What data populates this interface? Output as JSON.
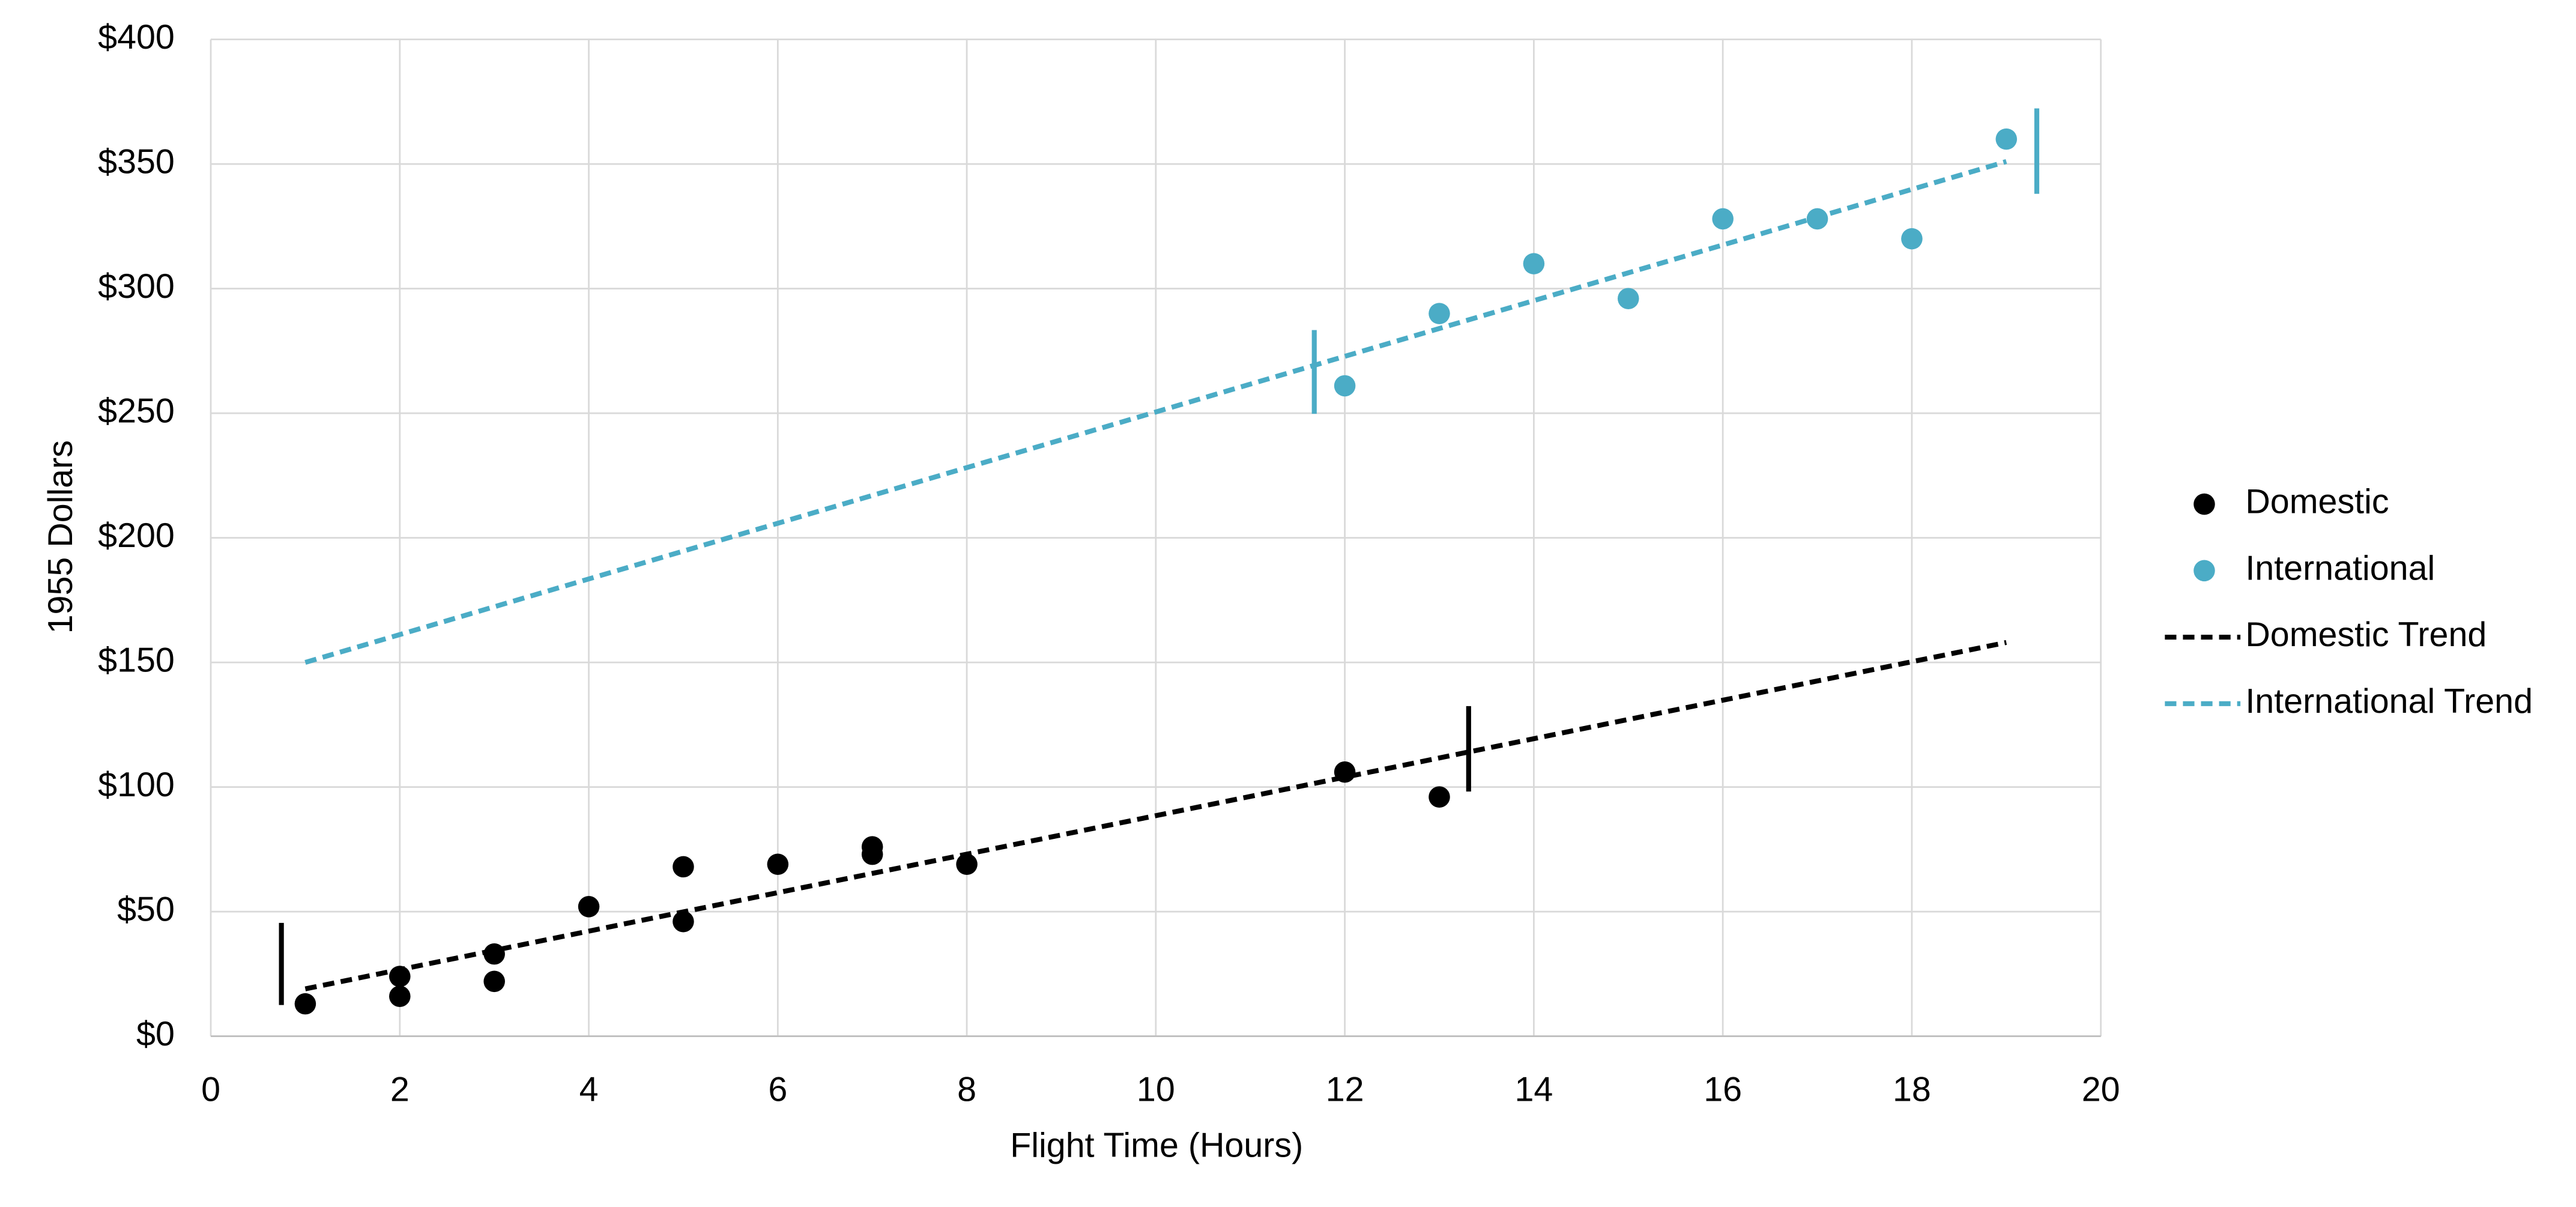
{
  "chart_data": {
    "type": "scatter",
    "xlabel": "Flight Time (Hours)",
    "ylabel": "1955 Dollars",
    "xlim": [
      0,
      20
    ],
    "xticks": [
      0,
      2,
      4,
      6,
      8,
      10,
      12,
      14,
      16,
      18,
      20
    ],
    "ylim": [
      0,
      400
    ],
    "yticks": [
      {
        "value": 0,
        "label": "$0"
      },
      {
        "value": 50,
        "label": "$50"
      },
      {
        "value": 100,
        "label": "$100"
      },
      {
        "value": 150,
        "label": "$150"
      },
      {
        "value": 200,
        "label": "$200"
      },
      {
        "value": 250,
        "label": "$250"
      },
      {
        "value": 300,
        "label": "$300"
      },
      {
        "value": 350,
        "label": "$350"
      },
      {
        "value": 400,
        "label": "$400"
      }
    ],
    "grid": true,
    "legend": "right",
    "series": [
      {
        "name": "Domestic",
        "color": "#000000",
        "mode": "markers",
        "x": [
          1,
          2,
          2,
          3,
          3,
          4,
          5,
          5,
          6,
          7,
          7,
          8,
          12,
          13
        ],
        "values": [
          13,
          24,
          16,
          33,
          22,
          52,
          68,
          46,
          69,
          76,
          73,
          69,
          106,
          96
        ]
      },
      {
        "name": "International",
        "color": "#4bacc6",
        "mode": "markers",
        "x": [
          12,
          13,
          14,
          15,
          16,
          17,
          18,
          19
        ],
        "values": [
          261,
          290,
          310,
          296,
          328,
          328,
          320,
          360
        ]
      },
      {
        "name": "Domestic Trend",
        "color": "#000000",
        "mode": "dashed-line",
        "x": [
          1,
          19
        ],
        "values": [
          19,
          158
        ]
      },
      {
        "name": "International Trend",
        "color": "#4bacc6",
        "mode": "dashed-line",
        "x": [
          1,
          19
        ],
        "values": [
          150,
          351
        ]
      }
    ]
  }
}
